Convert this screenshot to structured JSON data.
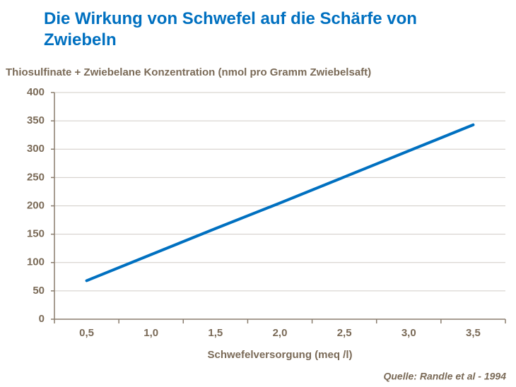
{
  "chart_data": {
    "type": "line",
    "title": "Die Wirkung von Schwefel auf die Schärfe von Zwiebeln",
    "y_label": "Thiosulfinate + Zwiebelane Konzentration (nmol pro Gramm Zwiebelsaft)",
    "x_label": "Schwefelversorgung (meq /l)",
    "source": "Quelle: Randle et al - 1994",
    "categories": [
      "0,5",
      "1,0",
      "1,5",
      "2,0",
      "2,5",
      "3,0",
      "3,5"
    ],
    "values": [
      68,
      114,
      160,
      205,
      251,
      297,
      343
    ],
    "color": "#0070c0",
    "ylim": [
      0,
      400
    ],
    "yticks": [
      0,
      50,
      100,
      150,
      200,
      250,
      300,
      350,
      400
    ],
    "grid": true
  }
}
